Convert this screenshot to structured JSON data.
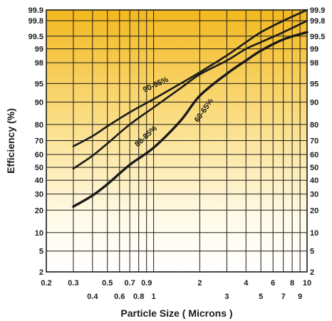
{
  "chart_data": {
    "type": "line",
    "title": "",
    "xlabel": "Particle Size  ( Microns )",
    "ylabel": "Efficiency (%)",
    "x_scale": "log",
    "y_scale": "probability",
    "xlim": [
      0.2,
      10
    ],
    "ylim": [
      2,
      99.9
    ],
    "grid": true,
    "x_ticks_upper": [
      "0.2",
      "0.3",
      "0.5",
      "0.7",
      "0.9",
      "2",
      "4",
      "6",
      "8",
      "10"
    ],
    "x_ticks_lower": [
      "0.4",
      "0.6",
      "0.8",
      "1",
      "3",
      "5",
      "7",
      "9"
    ],
    "y_ticks": [
      "2",
      "5",
      "10",
      "20",
      "30",
      "40",
      "50",
      "60",
      "70",
      "80",
      "90",
      "95",
      "98",
      "99",
      "99.5",
      "99.8",
      "99.9"
    ],
    "series": [
      {
        "name": "90-95%",
        "x": [
          0.3,
          0.4,
          0.5,
          0.7,
          1,
          1.5,
          2,
          3,
          4,
          5,
          7,
          10
        ],
        "y": [
          66,
          73,
          79,
          86,
          91,
          95,
          96.9,
          98.6,
          99.3,
          99.6,
          99.8,
          99.9
        ]
      },
      {
        "name": "80-85%",
        "x": [
          0.3,
          0.4,
          0.5,
          0.7,
          1,
          1.5,
          2,
          3,
          4,
          5,
          7,
          10
        ],
        "y": [
          49,
          59,
          68,
          80,
          88,
          94,
          96.6,
          98.2,
          99.0,
          99.3,
          99.6,
          99.8
        ]
      },
      {
        "name": "60-65%",
        "x": [
          0.3,
          0.4,
          0.5,
          0.7,
          1,
          1.5,
          2,
          3,
          4,
          5,
          7,
          10
        ],
        "y": [
          22,
          29,
          37,
          52,
          65,
          82,
          92,
          96.7,
          98.2,
          98.9,
          99.4,
          99.6
        ]
      }
    ]
  }
}
